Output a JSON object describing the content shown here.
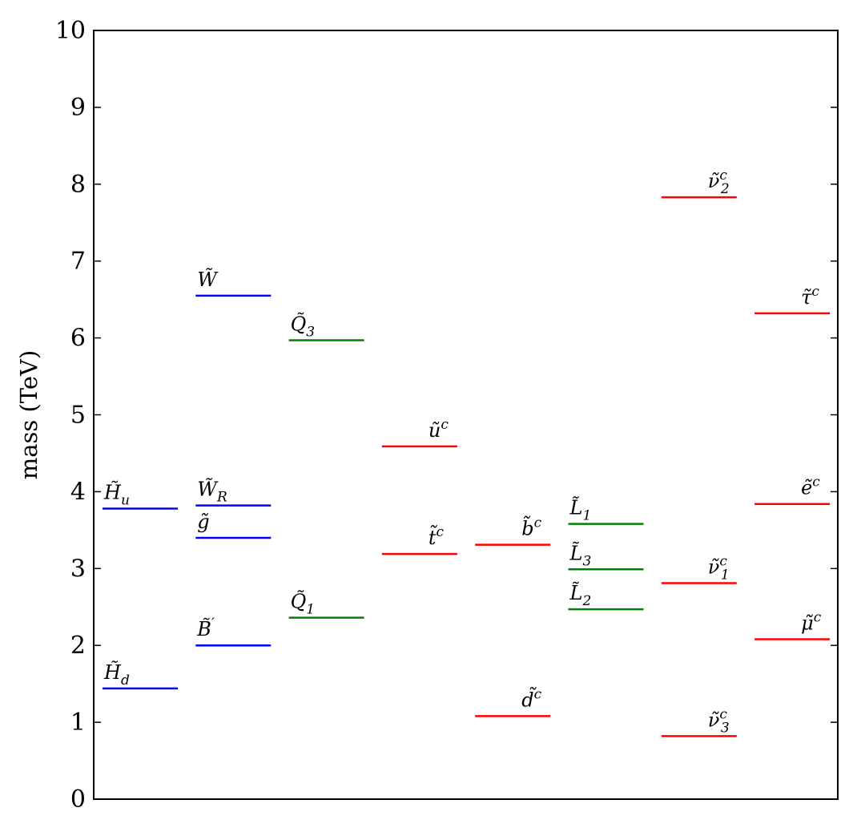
{
  "chart_data": {
    "type": "spectrum",
    "ylabel": "mass (TeV)",
    "ylim": [
      0,
      10
    ],
    "yticks": [
      "0",
      "1",
      "2",
      "3",
      "4",
      "5",
      "6",
      "7",
      "8",
      "9",
      "10"
    ],
    "grid": false,
    "legend": "none",
    "colors": {
      "blue": "#0000ff",
      "green": "#008000",
      "red": "#ff0000"
    },
    "levels": [
      {
        "name": "H_u",
        "base": "H",
        "sub": "u",
        "sup": "",
        "column": 1,
        "mass": 3.78,
        "color": "blue",
        "label_side": "left"
      },
      {
        "name": "H_d",
        "base": "H",
        "sub": "d",
        "sup": "",
        "column": 1,
        "mass": 1.44,
        "color": "blue",
        "label_side": "left"
      },
      {
        "name": "W",
        "base": "W",
        "sub": "",
        "sup": "",
        "column": 2,
        "mass": 6.55,
        "color": "blue",
        "label_side": "left"
      },
      {
        "name": "W_R",
        "base": "W",
        "sub": "R",
        "sup": "",
        "column": 2,
        "mass": 3.82,
        "color": "blue",
        "label_side": "left"
      },
      {
        "name": "g",
        "base": "g",
        "sub": "",
        "sup": "",
        "column": 2,
        "mass": 3.4,
        "color": "blue",
        "label_side": "left"
      },
      {
        "name": "B'",
        "base": "B",
        "sub": "",
        "sup": "′",
        "column": 2,
        "mass": 2.0,
        "color": "blue",
        "label_side": "left"
      },
      {
        "name": "Q_3",
        "base": "Q",
        "sub": "3",
        "sup": "",
        "column": 3,
        "mass": 5.97,
        "color": "green",
        "label_side": "left"
      },
      {
        "name": "Q_1",
        "base": "Q",
        "sub": "1",
        "sup": "",
        "column": 3,
        "mass": 2.36,
        "color": "green",
        "label_side": "left"
      },
      {
        "name": "u^c",
        "base": "u",
        "sub": "",
        "sup": "c",
        "column": 4,
        "mass": 4.59,
        "color": "red",
        "label_side": "right"
      },
      {
        "name": "t^c",
        "base": "t",
        "sub": "",
        "sup": "c",
        "column": 4,
        "mass": 3.19,
        "color": "red",
        "label_side": "right"
      },
      {
        "name": "b^c",
        "base": "b",
        "sub": "",
        "sup": "c",
        "column": 5,
        "mass": 3.31,
        "color": "red",
        "label_side": "right"
      },
      {
        "name": "d^c",
        "base": "d",
        "sub": "",
        "sup": "c",
        "column": 5,
        "mass": 1.08,
        "color": "red",
        "label_side": "right"
      },
      {
        "name": "L_1",
        "base": "L",
        "sub": "1",
        "sup": "",
        "column": 6,
        "mass": 3.58,
        "color": "green",
        "label_side": "left"
      },
      {
        "name": "L_3",
        "base": "L",
        "sub": "3",
        "sup": "",
        "column": 6,
        "mass": 2.99,
        "color": "green",
        "label_side": "left"
      },
      {
        "name": "L_2",
        "base": "L",
        "sub": "2",
        "sup": "",
        "column": 6,
        "mass": 2.47,
        "color": "green",
        "label_side": "left"
      },
      {
        "name": "nu^c_2",
        "base": "ν",
        "sub": "2",
        "sup": "c",
        "column": 7,
        "mass": 7.83,
        "color": "red",
        "label_side": "right"
      },
      {
        "name": "nu^c_1",
        "base": "ν",
        "sub": "1",
        "sup": "c",
        "column": 7,
        "mass": 2.81,
        "color": "red",
        "label_side": "right"
      },
      {
        "name": "nu^c_3",
        "base": "ν",
        "sub": "3",
        "sup": "c",
        "column": 7,
        "mass": 0.82,
        "color": "red",
        "label_side": "right"
      },
      {
        "name": "tau^c",
        "base": "τ",
        "sub": "",
        "sup": "c",
        "column": 8,
        "mass": 6.32,
        "color": "red",
        "label_side": "right"
      },
      {
        "name": "e^c",
        "base": "e",
        "sub": "",
        "sup": "c",
        "column": 8,
        "mass": 3.84,
        "color": "red",
        "label_side": "right"
      },
      {
        "name": "mu^c",
        "base": "μ",
        "sub": "",
        "sup": "c",
        "column": 8,
        "mass": 2.08,
        "color": "red",
        "label_side": "right"
      }
    ]
  }
}
